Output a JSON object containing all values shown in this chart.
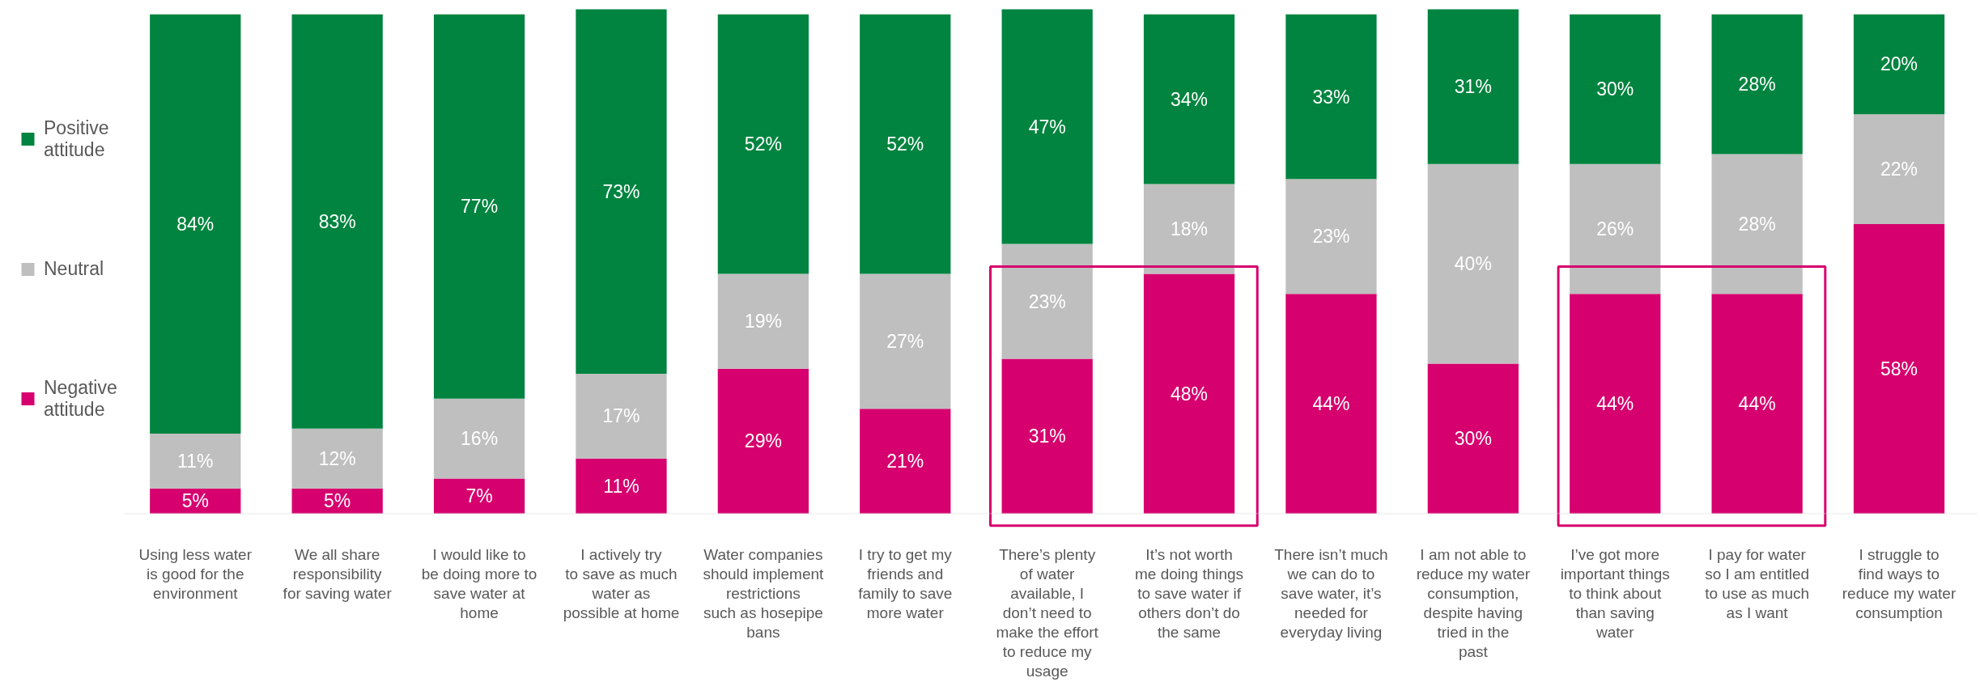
{
  "chart_data": {
    "type": "bar",
    "stacked": true,
    "legend": "left",
    "grid": false,
    "tick_labels": "x",
    "categories": [
      "Using less water is good for the environment",
      "We all share responsibility for saving water",
      "I would like to be doing more to save water at home",
      "I actively try to save as much water as possible at home",
      "Water companies should implement restrictions such as hosepipe bans",
      "I try to get my friends and family to save more water",
      "There’s plenty of water available, I don’t need to make the effort to reduce my usage",
      "It’s not worth me doing things to save water if others don’t do the same",
      "There isn’t much we can do to save water, it’s needed for everyday living",
      "I am not able to reduce my water consumption, despite having tried in the past",
      "I’ve got more important things to think about than saving water",
      "I pay for water so I am entitled to use as much as I want",
      "I struggle to find ways to reduce my water consumption"
    ],
    "series": [
      {
        "name": "Negative attitude",
        "color": "#d6006e",
        "values": [
          5,
          5,
          7,
          11,
          29,
          21,
          31,
          48,
          44,
          30,
          44,
          44,
          58
        ],
        "value_labels": [
          "5%",
          "5%",
          "7%",
          "11%",
          "29%",
          "21%",
          "31%",
          "48%",
          "44%",
          "30%",
          "44%",
          "44%",
          "58%"
        ]
      },
      {
        "name": "Neutral",
        "color": "#bfbfbf",
        "values": [
          11,
          12,
          16,
          17,
          19,
          27,
          23,
          18,
          23,
          40,
          26,
          28,
          22
        ],
        "value_labels": [
          "11%",
          "12%",
          "16%",
          "17%",
          "19%",
          "27%",
          "23%",
          "18%",
          "23%",
          "40%",
          "26%",
          "28%",
          "22%"
        ]
      },
      {
        "name": "Positive attitude",
        "color": "#00843f",
        "values": [
          84,
          83,
          77,
          73,
          52,
          52,
          47,
          34,
          33,
          31,
          30,
          28,
          20
        ],
        "value_labels": [
          "84%",
          "83%",
          "77%",
          "73%",
          "52%",
          "52%",
          "47%",
          "34%",
          "33%",
          "31%",
          "30%",
          "28%",
          "20%"
        ]
      }
    ]
  }
}
